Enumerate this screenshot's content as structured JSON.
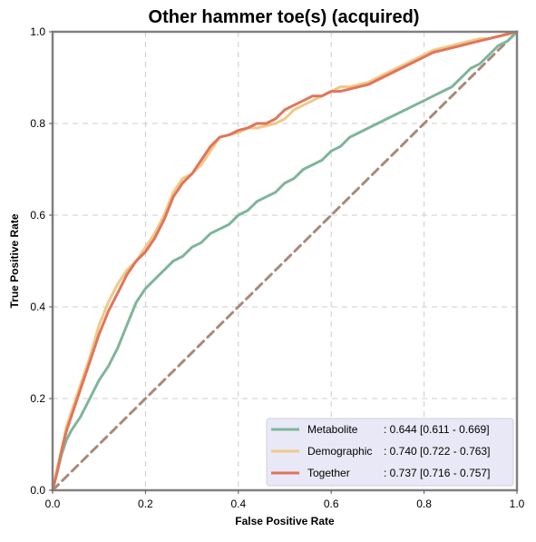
{
  "chart_data": {
    "type": "line",
    "title": "Other hammer toe(s) (acquired)",
    "xlabel": "False Positive Rate",
    "ylabel": "True Positive Rate",
    "xlim": [
      0,
      1
    ],
    "ylim": [
      0,
      1
    ],
    "xticks": [
      "0.0",
      "0.2",
      "0.4",
      "0.6",
      "0.8",
      "1.0"
    ],
    "yticks": [
      "0.0",
      "0.2",
      "0.4",
      "0.6",
      "0.8",
      "1.0"
    ],
    "grid": true,
    "legend_position": "bottom-right",
    "series": [
      {
        "name": "Metabolite",
        "stat": ": 0.644 [0.611 - 0.669]",
        "color": "#7fb59a",
        "x": [
          0,
          0.01,
          0.02,
          0.03,
          0.04,
          0.06,
          0.08,
          0.1,
          0.12,
          0.14,
          0.16,
          0.18,
          0.2,
          0.22,
          0.24,
          0.26,
          0.28,
          0.3,
          0.32,
          0.34,
          0.36,
          0.38,
          0.4,
          0.42,
          0.44,
          0.46,
          0.48,
          0.5,
          0.52,
          0.54,
          0.56,
          0.58,
          0.6,
          0.62,
          0.64,
          0.66,
          0.68,
          0.7,
          0.72,
          0.74,
          0.76,
          0.78,
          0.8,
          0.82,
          0.84,
          0.86,
          0.88,
          0.9,
          0.92,
          0.94,
          0.96,
          0.98,
          1.0
        ],
        "y": [
          0,
          0.04,
          0.08,
          0.11,
          0.13,
          0.16,
          0.2,
          0.24,
          0.27,
          0.31,
          0.36,
          0.41,
          0.44,
          0.46,
          0.48,
          0.5,
          0.51,
          0.53,
          0.54,
          0.56,
          0.57,
          0.58,
          0.6,
          0.61,
          0.63,
          0.64,
          0.65,
          0.67,
          0.68,
          0.7,
          0.71,
          0.72,
          0.74,
          0.75,
          0.77,
          0.78,
          0.79,
          0.8,
          0.81,
          0.82,
          0.83,
          0.84,
          0.85,
          0.86,
          0.87,
          0.88,
          0.9,
          0.92,
          0.93,
          0.95,
          0.97,
          0.98,
          1.0
        ]
      },
      {
        "name": "Demographic",
        "stat": ": 0.740 [0.722 - 0.763]",
        "color": "#f0c987",
        "x": [
          0,
          0.01,
          0.02,
          0.03,
          0.04,
          0.06,
          0.08,
          0.1,
          0.12,
          0.14,
          0.16,
          0.18,
          0.2,
          0.22,
          0.24,
          0.26,
          0.28,
          0.3,
          0.32,
          0.34,
          0.36,
          0.38,
          0.4,
          0.42,
          0.44,
          0.46,
          0.48,
          0.5,
          0.52,
          0.54,
          0.56,
          0.58,
          0.6,
          0.62,
          0.64,
          0.66,
          0.68,
          0.7,
          0.72,
          0.74,
          0.76,
          0.78,
          0.8,
          0.82,
          0.84,
          0.86,
          0.88,
          0.9,
          0.92,
          0.94,
          0.96,
          0.98,
          1.0
        ],
        "y": [
          0,
          0.05,
          0.09,
          0.14,
          0.17,
          0.23,
          0.29,
          0.36,
          0.41,
          0.45,
          0.48,
          0.5,
          0.53,
          0.56,
          0.6,
          0.65,
          0.68,
          0.69,
          0.71,
          0.74,
          0.77,
          0.775,
          0.78,
          0.79,
          0.79,
          0.795,
          0.8,
          0.81,
          0.83,
          0.84,
          0.85,
          0.86,
          0.87,
          0.88,
          0.88,
          0.885,
          0.89,
          0.9,
          0.91,
          0.92,
          0.93,
          0.94,
          0.95,
          0.96,
          0.965,
          0.97,
          0.975,
          0.98,
          0.985,
          0.985,
          0.99,
          0.995,
          1.0
        ]
      },
      {
        "name": "Together",
        "stat": ": 0.737 [0.716 - 0.757]",
        "color": "#e0755b",
        "x": [
          0,
          0.01,
          0.02,
          0.03,
          0.04,
          0.06,
          0.08,
          0.1,
          0.12,
          0.14,
          0.16,
          0.18,
          0.2,
          0.22,
          0.24,
          0.26,
          0.28,
          0.3,
          0.32,
          0.34,
          0.36,
          0.38,
          0.4,
          0.42,
          0.44,
          0.46,
          0.48,
          0.5,
          0.52,
          0.54,
          0.56,
          0.58,
          0.6,
          0.62,
          0.64,
          0.66,
          0.68,
          0.7,
          0.72,
          0.74,
          0.76,
          0.78,
          0.8,
          0.82,
          0.84,
          0.86,
          0.88,
          0.9,
          0.92,
          0.94,
          0.96,
          0.98,
          1.0
        ],
        "y": [
          0,
          0.04,
          0.09,
          0.13,
          0.16,
          0.22,
          0.28,
          0.34,
          0.39,
          0.43,
          0.47,
          0.5,
          0.52,
          0.55,
          0.59,
          0.64,
          0.67,
          0.69,
          0.72,
          0.75,
          0.77,
          0.775,
          0.785,
          0.79,
          0.8,
          0.8,
          0.81,
          0.83,
          0.84,
          0.85,
          0.86,
          0.86,
          0.87,
          0.87,
          0.875,
          0.88,
          0.885,
          0.895,
          0.905,
          0.915,
          0.925,
          0.935,
          0.945,
          0.955,
          0.96,
          0.965,
          0.97,
          0.975,
          0.98,
          0.985,
          0.99,
          0.995,
          1.0
        ]
      },
      {
        "name": "",
        "color": "#a88a7a",
        "x": [
          0,
          1
        ],
        "y": [
          0,
          1
        ]
      }
    ]
  }
}
